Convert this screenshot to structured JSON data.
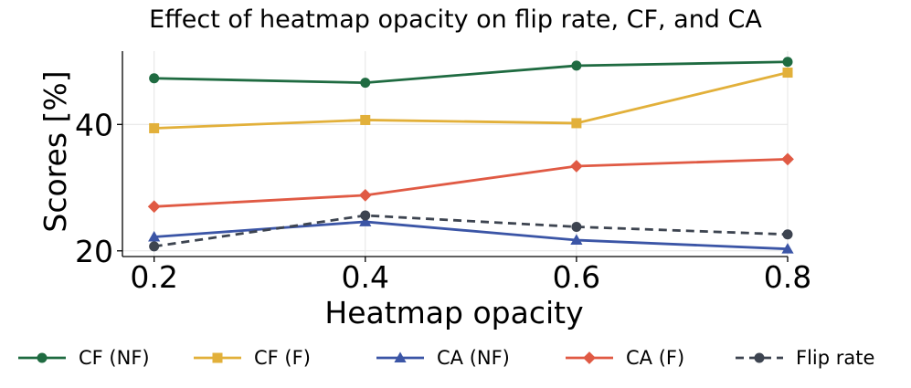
{
  "chart_data": {
    "type": "line",
    "title": "Effect of heatmap opacity on flip rate, CF, and CA",
    "xlabel": "Heatmap opacity",
    "ylabel": "Scores [%]",
    "x": [
      0.2,
      0.4,
      0.6,
      0.8
    ],
    "x_tick_labels": [
      "0.2",
      "0.4",
      "0.6",
      "0.8"
    ],
    "y_ticks": [
      20,
      40
    ],
    "y_tick_labels": [
      "20",
      "40"
    ],
    "xlim": [
      0.17,
      0.8
    ],
    "ylim": [
      19.1,
      51.6
    ],
    "grid": true,
    "legend_position": "bottom",
    "series": [
      {
        "name": "CF (NF)",
        "values": [
          47.3,
          46.6,
          49.3,
          49.9
        ],
        "color": "#1f6b41",
        "marker": "circle",
        "linestyle": "solid"
      },
      {
        "name": "CF (F)",
        "values": [
          39.4,
          40.7,
          40.2,
          48.2
        ],
        "color": "#e2b03a",
        "marker": "square",
        "linestyle": "solid"
      },
      {
        "name": "CA (NF)",
        "values": [
          22.2,
          24.6,
          21.7,
          20.3
        ],
        "color": "#3b55a6",
        "marker": "triangle",
        "linestyle": "solid"
      },
      {
        "name": "CA (F)",
        "values": [
          27.0,
          28.8,
          33.4,
          34.5
        ],
        "color": "#e05a44",
        "marker": "diamond",
        "linestyle": "solid"
      },
      {
        "name": "Flip rate",
        "values": [
          20.7,
          25.6,
          23.8,
          22.6
        ],
        "color": "#3d4450",
        "marker": "circle",
        "linestyle": "dashed"
      }
    ]
  }
}
